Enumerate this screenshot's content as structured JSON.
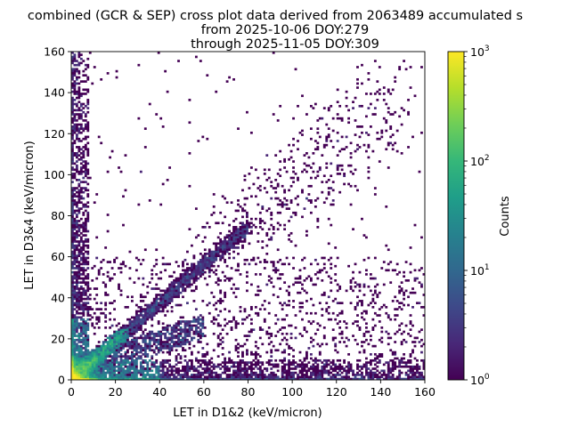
{
  "chart_data": {
    "type": "heatmap",
    "title_lines": [
      "combined (GCR & SEP) cross plot data derived from 2063489 accumulated s",
      "from 2025-10-06 DOY:279",
      "through 2025-11-05 DOY:309"
    ],
    "xlabel": "LET in D1&2 (keV/micron)",
    "ylabel": "LET in D3&4 (keV/micron)",
    "xlim": [
      0,
      160
    ],
    "ylim": [
      0,
      160
    ],
    "xticks": [
      "0",
      "20",
      "40",
      "60",
      "80",
      "100",
      "120",
      "140",
      "160"
    ],
    "yticks": [
      "0",
      "20",
      "40",
      "60",
      "80",
      "100",
      "120",
      "140",
      "160"
    ],
    "colorbar": {
      "label": "Counts",
      "scale": "log",
      "range": [
        1,
        1000
      ],
      "ticks": [
        {
          "base": "10",
          "exp": "0",
          "value": 1
        },
        {
          "base": "10",
          "exp": "1",
          "value": 10
        },
        {
          "base": "10",
          "exp": "2",
          "value": 100
        },
        {
          "base": "10",
          "exp": "3",
          "value": 1000
        }
      ],
      "colormap": "viridis",
      "colormap_stops": [
        "#440154",
        "#482878",
        "#3e4989",
        "#31688e",
        "#26828e",
        "#1f9e89",
        "#35b779",
        "#6ece58",
        "#b5de2b",
        "#fde725"
      ]
    },
    "features": [
      {
        "name": "diagonal band",
        "from": [
          5,
          5
        ],
        "to": [
          80,
          75
        ]
      },
      {
        "name": "low-LET core",
        "x": [
          0,
          10
        ],
        "y": [
          0,
          10
        ],
        "max_counts": 1000
      },
      {
        "name": "y-axis column",
        "x": [
          0,
          8
        ],
        "y": [
          0,
          160
        ]
      },
      {
        "name": "x-axis row",
        "x": [
          0,
          160
        ],
        "y": [
          0,
          10
        ]
      }
    ],
    "background": "#ffffff"
  }
}
